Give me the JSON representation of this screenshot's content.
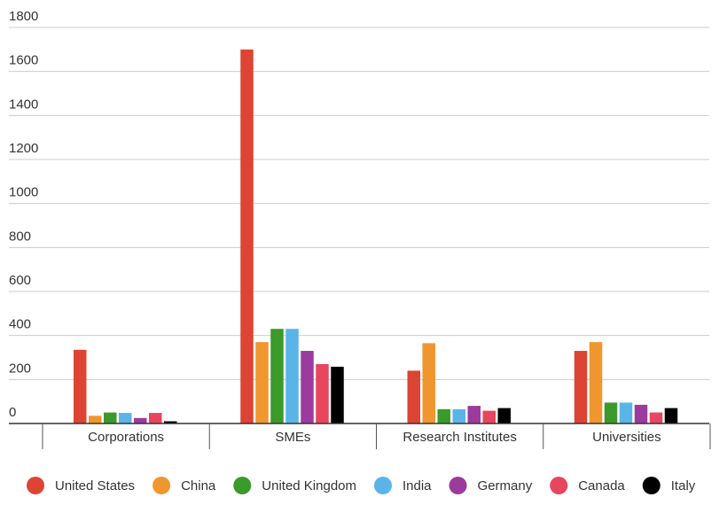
{
  "chart_data": {
    "type": "bar",
    "title": "",
    "xlabel": "",
    "ylabel": "",
    "ylim": [
      0,
      1800
    ],
    "yticks": [
      0,
      200,
      400,
      600,
      800,
      1000,
      1200,
      1400,
      1600,
      1800
    ],
    "grid": true,
    "legend_position": "bottom",
    "categories": [
      "Corporations",
      "SMEs",
      "Research Institutes",
      "Universities"
    ],
    "series": [
      {
        "name": "United States",
        "color": "#dd4433",
        "values": [
          335,
          1700,
          240,
          330
        ]
      },
      {
        "name": "China",
        "color": "#f0962f",
        "values": [
          35,
          370,
          365,
          370
        ]
      },
      {
        "name": "United Kingdom",
        "color": "#3a9a2a",
        "values": [
          50,
          430,
          65,
          95
        ]
      },
      {
        "name": "India",
        "color": "#5ab4e8",
        "values": [
          48,
          430,
          65,
          95
        ]
      },
      {
        "name": "Germany",
        "color": "#9b3b9e",
        "values": [
          25,
          330,
          80,
          85
        ]
      },
      {
        "name": "Canada",
        "color": "#e8455f",
        "values": [
          48,
          270,
          58,
          50
        ]
      },
      {
        "name": "Italy",
        "color": "#000000",
        "values": [
          10,
          258,
          70,
          70
        ]
      }
    ]
  }
}
